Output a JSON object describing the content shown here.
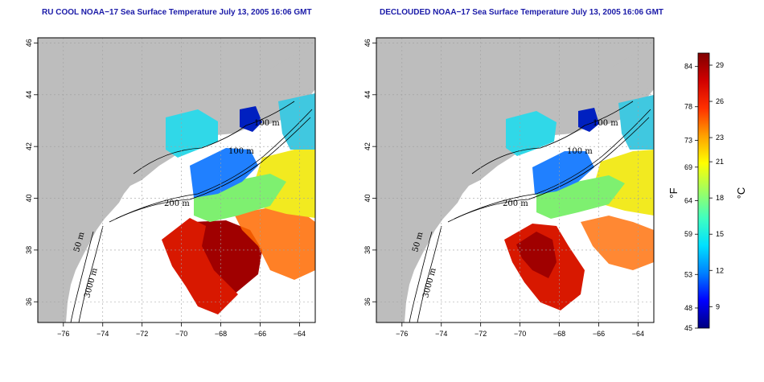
{
  "titles": {
    "left": "RU COOL NOAA−17 Sea Surface Temperature July 13, 2005 16:06 GMT",
    "right": "DECLOUDED NOAA−17 Sea Surface Temperature July 13, 2005 16:06 GMT"
  },
  "axes": {
    "x_ticks": [
      "−76",
      "−74",
      "−72",
      "−70",
      "−68",
      "−66",
      "−64"
    ],
    "x_values": [
      -76,
      -74,
      -72,
      -70,
      -68,
      -66,
      -64
    ],
    "y_ticks": [
      "36",
      "38",
      "40",
      "42",
      "44",
      "46"
    ],
    "y_values": [
      36,
      38,
      40,
      42,
      44,
      46
    ],
    "lon_range": [
      -77.3,
      -63.2
    ],
    "lat_range": [
      35.2,
      46.2
    ]
  },
  "contour_labels": {
    "m100": "100 m",
    "m200": "200 m",
    "m50": "50 m",
    "m3000": "3000 m"
  },
  "colorbar": {
    "fahrenheit_label": "°F",
    "celsius_label": "°C",
    "fahrenheit_ticks": [
      "84",
      "78",
      "73",
      "69",
      "64",
      "59",
      "53",
      "48",
      "45"
    ],
    "fahrenheit_values": [
      84,
      78,
      73,
      69,
      64,
      59,
      53,
      48,
      45
    ],
    "celsius_ticks": [
      "29",
      "26",
      "23",
      "21",
      "18",
      "15",
      "12",
      "9"
    ],
    "celsius_values": [
      29,
      26,
      23,
      21,
      18,
      15,
      12,
      9
    ],
    "range_f": [
      45,
      86
    ],
    "colors": [
      "#00007f",
      "#0000ff",
      "#0080ff",
      "#00e0ff",
      "#40ffc0",
      "#a0ff60",
      "#ffff00",
      "#ffa000",
      "#ff3000",
      "#d00000",
      "#800000"
    ]
  },
  "colors": {
    "land": "#bdbdbd",
    "grid": "#a0a0a0"
  }
}
